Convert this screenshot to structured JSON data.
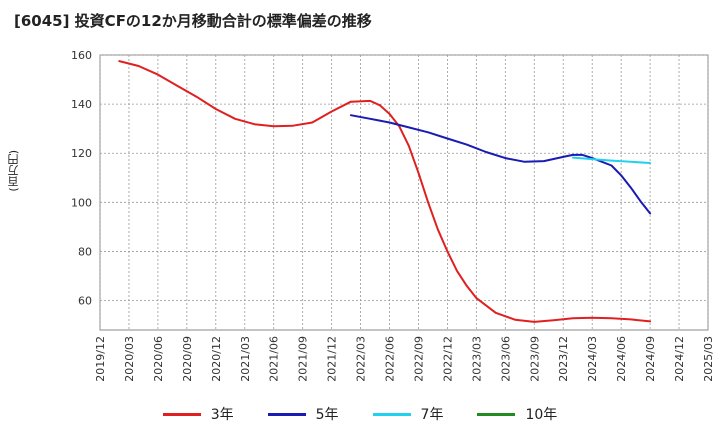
{
  "chart_data": {
    "type": "line",
    "title": "[6045]  投資CFの12か月移動合計の標準偏差の推移",
    "ylabel": "(百万円)",
    "xlabel": "",
    "ylim": [
      48,
      160
    ],
    "yticks": [
      60,
      80,
      100,
      120,
      140,
      160
    ],
    "xlim": [
      "2019/12",
      "2025/03"
    ],
    "xticks": [
      "2019/12",
      "2020/03",
      "2020/06",
      "2020/09",
      "2020/12",
      "2021/03",
      "2021/06",
      "2021/09",
      "2021/12",
      "2022/03",
      "2022/06",
      "2022/09",
      "2022/12",
      "2023/03",
      "2023/06",
      "2023/09",
      "2023/12",
      "2024/03",
      "2024/06",
      "2024/09",
      "2024/12",
      "2025/03"
    ],
    "grid": true,
    "legend_position": "bottom",
    "series": [
      {
        "name": "3年",
        "color": "#e02020",
        "points": [
          [
            "2020/02",
            157.5
          ],
          [
            "2020/04",
            155.5
          ],
          [
            "2020/06",
            152
          ],
          [
            "2020/08",
            147.5
          ],
          [
            "2020/10",
            143
          ],
          [
            "2020/12",
            138
          ],
          [
            "2021/02",
            134
          ],
          [
            "2021/04",
            131.8
          ],
          [
            "2021/06",
            131
          ],
          [
            "2021/08",
            131.2
          ],
          [
            "2021/10",
            132.5
          ],
          [
            "2021/12",
            137
          ],
          [
            "2022/02",
            141
          ],
          [
            "2022/04",
            141.3
          ],
          [
            "2022/05",
            139.5
          ],
          [
            "2022/06",
            136
          ],
          [
            "2022/07",
            131
          ],
          [
            "2022/08",
            123
          ],
          [
            "2022/09",
            112
          ],
          [
            "2022/10",
            100
          ],
          [
            "2022/11",
            89
          ],
          [
            "2022/12",
            80
          ],
          [
            "2023/01",
            72
          ],
          [
            "2023/02",
            66
          ],
          [
            "2023/03",
            61
          ],
          [
            "2023/05",
            55
          ],
          [
            "2023/07",
            52.2
          ],
          [
            "2023/09",
            51.3
          ],
          [
            "2023/11",
            52
          ],
          [
            "2024/01",
            52.8
          ],
          [
            "2024/03",
            53
          ],
          [
            "2024/05",
            52.8
          ],
          [
            "2024/07",
            52.3
          ],
          [
            "2024/09",
            51.5
          ]
        ]
      },
      {
        "name": "5年",
        "color": "#1a1ab4",
        "points": [
          [
            "2022/02",
            135.5
          ],
          [
            "2022/04",
            134
          ],
          [
            "2022/06",
            132.5
          ],
          [
            "2022/08",
            130.5
          ],
          [
            "2022/10",
            128.5
          ],
          [
            "2022/12",
            126
          ],
          [
            "2023/02",
            123.5
          ],
          [
            "2023/04",
            120.5
          ],
          [
            "2023/06",
            118
          ],
          [
            "2023/08",
            116.5
          ],
          [
            "2023/10",
            116.8
          ],
          [
            "2023/12",
            118.5
          ],
          [
            "2024/01",
            119.3
          ],
          [
            "2024/02",
            119.3
          ],
          [
            "2024/03",
            118
          ],
          [
            "2024/05",
            115
          ],
          [
            "2024/06",
            111
          ],
          [
            "2024/07",
            106
          ],
          [
            "2024/08",
            100.5
          ],
          [
            "2024/09",
            95.5
          ]
        ]
      },
      {
        "name": "7年",
        "color": "#22d0f0",
        "points": [
          [
            "2024/01",
            118.2
          ],
          [
            "2024/03",
            117.6
          ],
          [
            "2024/05",
            117
          ],
          [
            "2024/07",
            116.5
          ],
          [
            "2024/09",
            116
          ]
        ]
      },
      {
        "name": "10年",
        "color": "#228b22",
        "points": []
      }
    ]
  }
}
